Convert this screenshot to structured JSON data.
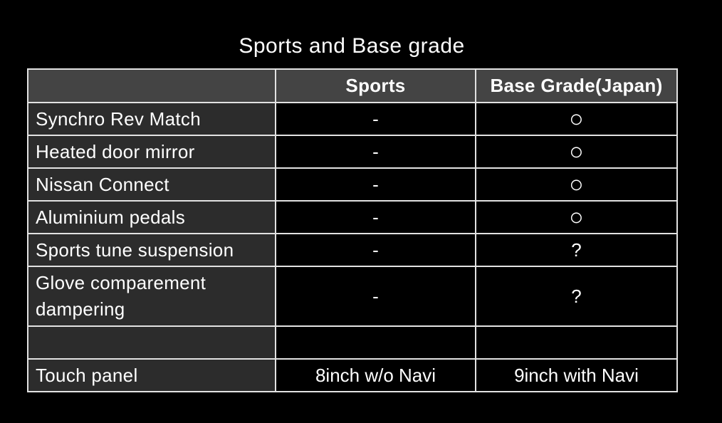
{
  "title": "Sports and Base grade",
  "table": {
    "header": {
      "cells": [
        "",
        "Sports",
        "Base Grade(Japan)"
      ]
    },
    "rows": [
      {
        "cells": [
          "Synchro Rev Match",
          "-",
          "○"
        ]
      },
      {
        "cells": [
          "Heated door mirror",
          "-",
          "○"
        ]
      },
      {
        "cells": [
          "Nissan Connect",
          "-",
          "○"
        ]
      },
      {
        "cells": [
          "Aluminium pedals",
          "-",
          "○"
        ]
      },
      {
        "cells": [
          "Sports tune suspension",
          "-",
          "?"
        ]
      },
      {
        "cells": [
          "Glove comparement dampering",
          "-",
          "?"
        ]
      },
      {
        "cells": [
          "",
          "",
          ""
        ]
      },
      {
        "cells": [
          "Touch panel",
          "8inch w/o Navi",
          "9inch with Navi"
        ]
      }
    ],
    "marks": {
      "circle_glyph": "○",
      "dash_glyph": "-",
      "unknown_glyph": "?"
    },
    "colors": {
      "background": "#000000",
      "header_bg": "#444444",
      "label_column_bg": "#2c2c2c",
      "value_column_bg": "#000000",
      "border": "#e2e2e2",
      "text": "#ffffff"
    }
  }
}
